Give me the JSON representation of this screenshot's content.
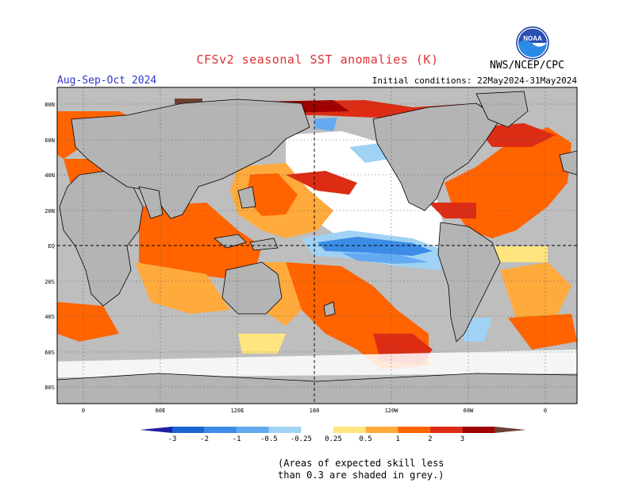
{
  "title": "CFSv2 seasonal SST anomalies (K)",
  "season": "Aug-Sep-Oct 2024",
  "initial_conditions": "Initial conditions: 22May2024-31May2024",
  "agency": "NWS/NCEP/CPC",
  "logo_text": "NOAA",
  "lat_labels": [
    "80N",
    "60N",
    "40N",
    "20N",
    "EQ",
    "20S",
    "40S",
    "60S",
    "80S"
  ],
  "lon_labels": [
    "0",
    "60E",
    "120E",
    "180",
    "120W",
    "60W",
    "0"
  ],
  "colorbar": {
    "labels": [
      "-3",
      "-2",
      "-1",
      "-0.5",
      "-0.25",
      "0.25",
      "0.5",
      "1",
      "2",
      "3"
    ],
    "colors": [
      "#2020a0",
      "#1c64d0",
      "#3c8ce6",
      "#64aaf0",
      "#a0d2f5",
      "#ffffff",
      "#ffe480",
      "#ffaa3c",
      "#ff6400",
      "#dc2d14",
      "#a00000",
      "#6e4032"
    ]
  },
  "skill_note_line1": "(Areas of expected skill less",
  "skill_note_line2": "than 0.3 are shaded in grey.)",
  "colors": {
    "land": "#b4b4b4",
    "grey_low_skill": "#bebebe",
    "title_red": "#e03030",
    "season_blue": "#3333cc"
  }
}
